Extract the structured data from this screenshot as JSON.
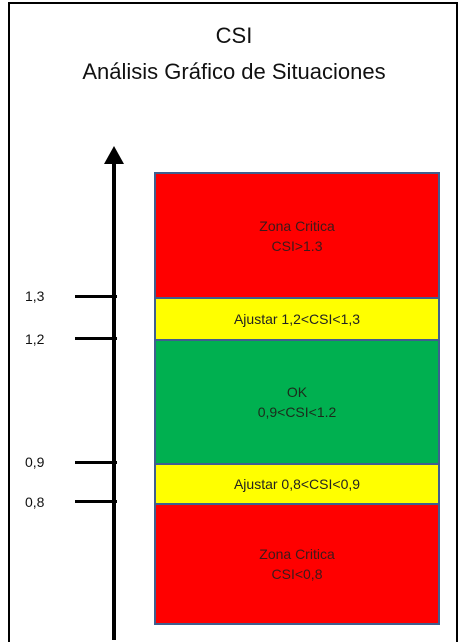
{
  "title": "CSI",
  "subtitle": "Análisis Gráfico de Situaciones",
  "axis": {
    "ticks": [
      {
        "label": "1,3",
        "value": 1.3
      },
      {
        "label": "1,2",
        "value": 1.2
      },
      {
        "label": "0,9",
        "value": 0.9
      },
      {
        "label": "0,8",
        "value": 0.8
      }
    ]
  },
  "zones": [
    {
      "line1": "Zona Critica",
      "line2": "CSI>1.3",
      "color": "#ff0000"
    },
    {
      "line1": "Ajustar 1,2<CSI<1,3",
      "line2": "",
      "color": "#ffff00"
    },
    {
      "line1": "OK",
      "line2": "0,9<CSI<1.2",
      "color": "#00b050"
    },
    {
      "line1": "Ajustar 0,8<CSI<0,9",
      "line2": "",
      "color": "#ffff00"
    },
    {
      "line1": "Zona Critica",
      "line2": "CSI<0,8",
      "color": "#ff0000"
    }
  ]
}
